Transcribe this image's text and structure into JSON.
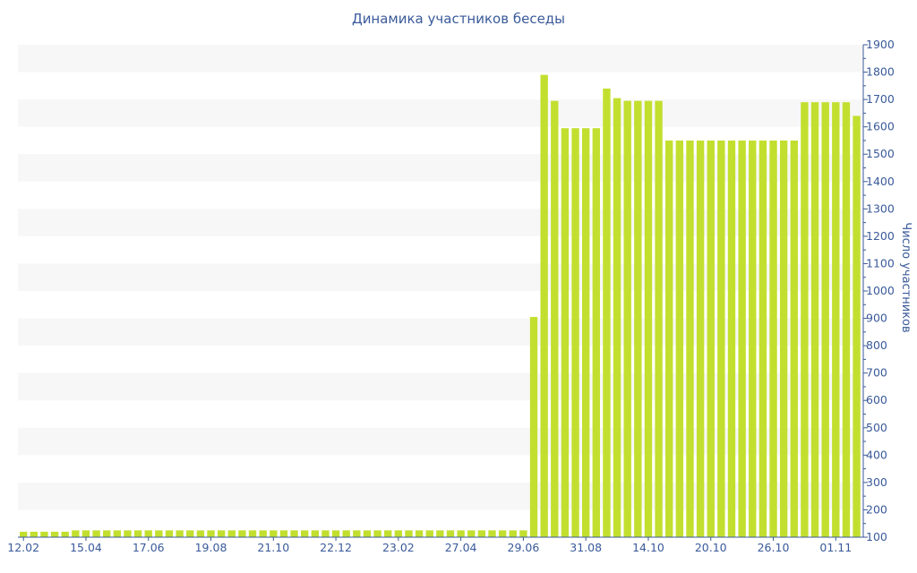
{
  "chart_data": {
    "type": "bar",
    "title": "Динамика участников беседы",
    "xlabel": "",
    "ylabel": "Число участников",
    "ylim": [
      100,
      1900
    ],
    "yticks": [
      100,
      200,
      300,
      400,
      500,
      600,
      700,
      800,
      900,
      1000,
      1100,
      1200,
      1300,
      1400,
      1500,
      1600,
      1700,
      1800,
      1900
    ],
    "y_axis_side": "right",
    "grid": "alternating horizontal bands",
    "bar_color": "#c2df2f",
    "band_color": "#f7f7f7",
    "text_color": "#3a5a9a",
    "xtick_labels": [
      "12.02",
      "15.04",
      "17.06",
      "19.08",
      "21.10",
      "22.12",
      "23.02",
      "27.04",
      "29.06",
      "31.08",
      "14.10",
      "20.10",
      "26.10",
      "01.11"
    ],
    "xtick_bar_index": [
      0,
      6,
      12,
      18,
      24,
      30,
      36,
      42,
      48,
      54,
      60,
      66,
      72,
      78
    ],
    "values": [
      120,
      120,
      120,
      120,
      120,
      125,
      125,
      125,
      125,
      125,
      125,
      125,
      125,
      125,
      125,
      125,
      125,
      125,
      125,
      125,
      125,
      125,
      125,
      125,
      125,
      125,
      125,
      125,
      125,
      125,
      125,
      125,
      125,
      125,
      125,
      125,
      125,
      125,
      125,
      125,
      125,
      125,
      125,
      125,
      125,
      125,
      125,
      125,
      125,
      905,
      1790,
      1695,
      1595,
      1595,
      1595,
      1595,
      1740,
      1705,
      1695,
      1695,
      1695,
      1695,
      1550,
      1550,
      1550,
      1550,
      1550,
      1550,
      1550,
      1550,
      1550,
      1550,
      1550,
      1550,
      1550,
      1690,
      1690,
      1690,
      1690,
      1690,
      1640
    ]
  }
}
